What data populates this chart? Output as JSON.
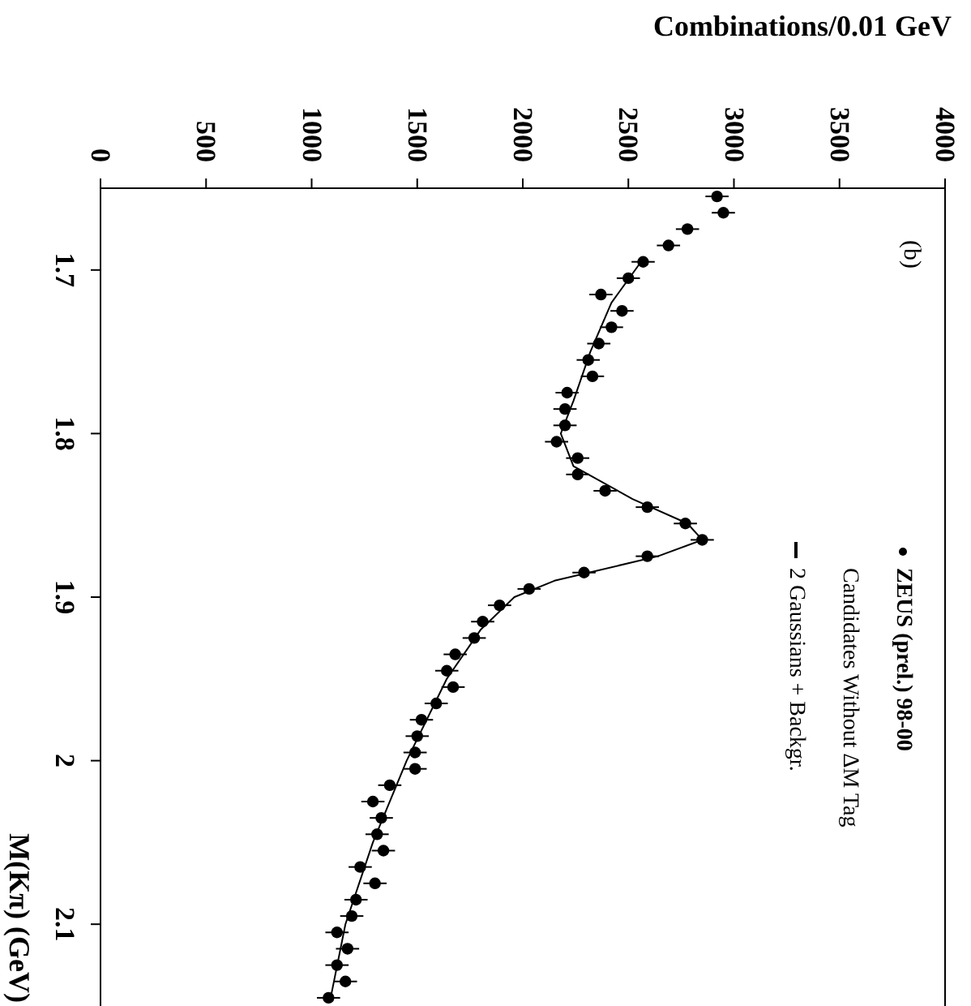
{
  "chart_data": {
    "type": "scatter",
    "xlabel": "Combinations/0.01 GeV",
    "ylabel": "M(Kπ) (GeV)",
    "xlim": [
      0,
      4000
    ],
    "xticks": [
      0,
      500,
      1000,
      1500,
      2000,
      2500,
      3000,
      3500,
      4000
    ],
    "ylim": [
      2.15,
      1.65
    ],
    "yticks": [
      1.7,
      1.8,
      1.9,
      2,
      2.1
    ],
    "grid": false,
    "legend": "right",
    "marker": "circle",
    "annotations": [
      "(b)",
      "Candidates Without ΔM Tag"
    ],
    "series": [
      {
        "name": "ZEUS (prel.) 98-00",
        "color": "#000000",
        "values": [
          1.655,
          1.665,
          1.675,
          1.685,
          1.695,
          1.705,
          1.715,
          1.725,
          1.735,
          1.745,
          1.755,
          1.765,
          1.775,
          1.785,
          1.795,
          1.805,
          1.815,
          1.825,
          1.835,
          1.845,
          1.855,
          1.865,
          1.875,
          1.885,
          1.895,
          1.905,
          1.915,
          1.925,
          1.935,
          1.945,
          1.955,
          1.965,
          1.975,
          1.985,
          1.995,
          2.005,
          2.015,
          2.025,
          2.035,
          2.045,
          2.055,
          2.065,
          2.075,
          2.085,
          2.095,
          2.105,
          2.115,
          2.125,
          2.135,
          2.145
        ],
        "x": [
          2920,
          2950,
          2780,
          2690,
          2570,
          2500,
          2370,
          2470,
          2420,
          2360,
          2310,
          2330,
          2210,
          2200,
          2200,
          2160,
          2260,
          2260,
          2390,
          2590,
          2770,
          2850,
          2590,
          2290,
          2030,
          1890,
          1810,
          1770,
          1680,
          1640,
          1670,
          1590,
          1520,
          1500,
          1490,
          1490,
          1370,
          1290,
          1330,
          1310,
          1340,
          1230,
          1300,
          1210,
          1190,
          1120,
          1170,
          1120,
          1160,
          1080
        ],
        "xerrors": [
          55,
          55,
          55,
          55,
          55,
          55,
          55,
          55,
          55,
          55,
          55,
          55,
          55,
          55,
          55,
          55,
          55,
          55,
          55,
          55,
          55,
          55,
          55,
          55,
          55,
          55,
          55,
          55,
          55,
          55,
          55,
          55,
          55,
          55,
          55,
          55,
          55,
          55,
          55,
          55,
          55,
          55,
          55,
          55,
          55,
          55,
          55,
          55,
          55,
          55
        ]
      },
      {
        "name": "2 Gaussians + Backgr.",
        "type": "line",
        "color": "#000000",
        "marker": "none",
        "values": [
          1.695,
          1.72,
          1.75,
          1.78,
          1.8,
          1.82,
          1.84,
          1.855,
          1.865,
          1.875,
          1.89,
          1.9,
          1.92,
          1.95,
          2,
          2.05,
          2.1,
          2.145
        ],
        "x": [
          2560,
          2420,
          2320,
          2240,
          2180,
          2240,
          2520,
          2780,
          2850,
          2640,
          2150,
          1960,
          1800,
          1640,
          1450,
          1290,
          1160,
          1090
        ]
      }
    ]
  }
}
